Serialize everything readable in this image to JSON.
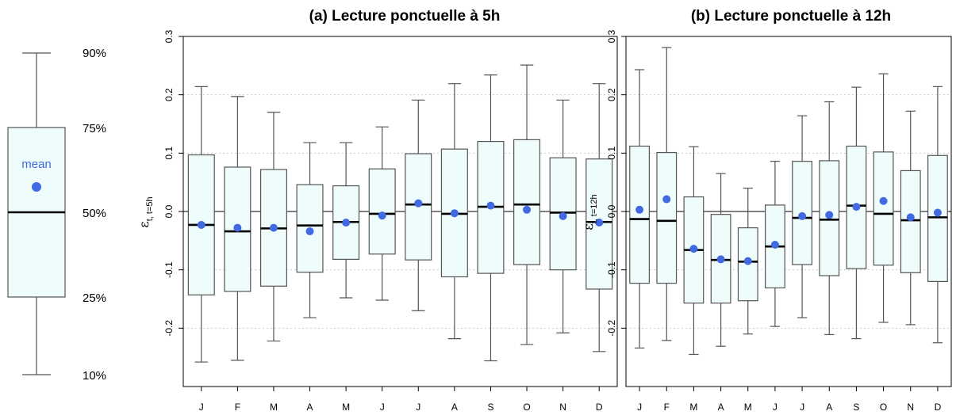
{
  "colors": {
    "box_fill": "#eefcfc",
    "mean": "#4169e1",
    "grid": "#cccccc",
    "line": "#555555"
  },
  "legend": {
    "mean_label": "mean",
    "levels": [
      {
        "label": "90%",
        "value": 0.9
      },
      {
        "label": "75%",
        "value": 0.75
      },
      {
        "label": "50%",
        "value": 0.5
      },
      {
        "label": "25%",
        "value": 0.25
      },
      {
        "label": "10%",
        "value": 0.1
      }
    ]
  },
  "chart_data": [
    {
      "type": "boxplot",
      "title": "(a) Lecture ponctuelle à 5h",
      "ylabel": "ε",
      "ylabel_sub": "t, t=5h",
      "ylim": [
        -0.3,
        0.3
      ],
      "yticks": [
        -0.2,
        -0.1,
        0.0,
        0.1,
        0.2,
        0.3
      ],
      "ytick_labels": [
        "-0.2",
        "-0.1",
        "0.0",
        "0.1",
        "0.2",
        "0.3"
      ],
      "grid": "dotted horizontal",
      "categories": [
        "J",
        "F",
        "M",
        "A",
        "M",
        "J",
        "J",
        "A",
        "S",
        "O",
        "N",
        "D"
      ],
      "p10": [
        -0.258,
        -0.255,
        -0.222,
        -0.182,
        -0.148,
        -0.152,
        -0.17,
        -0.218,
        -0.256,
        -0.228,
        -0.208,
        -0.24
      ],
      "p25": [
        -0.143,
        -0.137,
        -0.128,
        -0.104,
        -0.082,
        -0.073,
        -0.083,
        -0.112,
        -0.106,
        -0.091,
        -0.1,
        -0.133
      ],
      "median": [
        -0.023,
        -0.034,
        -0.029,
        -0.024,
        -0.018,
        -0.004,
        0.012,
        -0.004,
        0.008,
        0.012,
        -0.002,
        -0.018
      ],
      "p75": [
        0.097,
        0.076,
        0.072,
        0.046,
        0.044,
        0.073,
        0.099,
        0.107,
        0.12,
        0.123,
        0.092,
        0.09
      ],
      "p90": [
        0.214,
        0.197,
        0.17,
        0.118,
        0.118,
        0.145,
        0.191,
        0.219,
        0.234,
        0.251,
        0.191,
        0.219
      ],
      "mean": [
        -0.023,
        -0.028,
        -0.028,
        -0.034,
        -0.019,
        -0.007,
        0.014,
        -0.003,
        0.01,
        0.003,
        -0.008,
        -0.019
      ]
    },
    {
      "type": "boxplot",
      "title": "(b) Lecture ponctuelle à 12h",
      "ylabel": "ε",
      "ylabel_sub": "t, t=12h",
      "ylim": [
        -0.3,
        0.3
      ],
      "yticks": [
        -0.2,
        -0.1,
        0.0,
        0.1,
        0.2,
        0.3
      ],
      "ytick_labels": [
        "-0.2",
        "-0.1",
        "0.0",
        "0.1",
        "0.2",
        "0.3"
      ],
      "grid": "dotted horizontal",
      "categories": [
        "J",
        "F",
        "M",
        "A",
        "M",
        "J",
        "J",
        "A",
        "S",
        "O",
        "N",
        "D"
      ],
      "p10": [
        -0.234,
        -0.221,
        -0.245,
        -0.231,
        -0.21,
        -0.197,
        -0.182,
        -0.211,
        -0.218,
        -0.19,
        -0.194,
        -0.225
      ],
      "p25": [
        -0.123,
        -0.123,
        -0.157,
        -0.157,
        -0.153,
        -0.131,
        -0.091,
        -0.11,
        -0.098,
        -0.092,
        -0.105,
        -0.12
      ],
      "median": [
        -0.013,
        -0.016,
        -0.066,
        -0.083,
        -0.086,
        -0.06,
        -0.011,
        -0.014,
        0.01,
        -0.004,
        -0.015,
        -0.01
      ],
      "p75": [
        0.112,
        0.101,
        0.025,
        -0.005,
        -0.028,
        0.011,
        0.086,
        0.087,
        0.112,
        0.102,
        0.07,
        0.096
      ],
      "p90": [
        0.243,
        0.281,
        0.111,
        0.065,
        0.04,
        0.086,
        0.164,
        0.188,
        0.213,
        0.236,
        0.172,
        0.214
      ],
      "mean": [
        0.003,
        0.021,
        -0.064,
        -0.082,
        -0.085,
        -0.057,
        -0.008,
        -0.006,
        0.008,
        0.018,
        -0.01,
        -0.002
      ]
    }
  ]
}
